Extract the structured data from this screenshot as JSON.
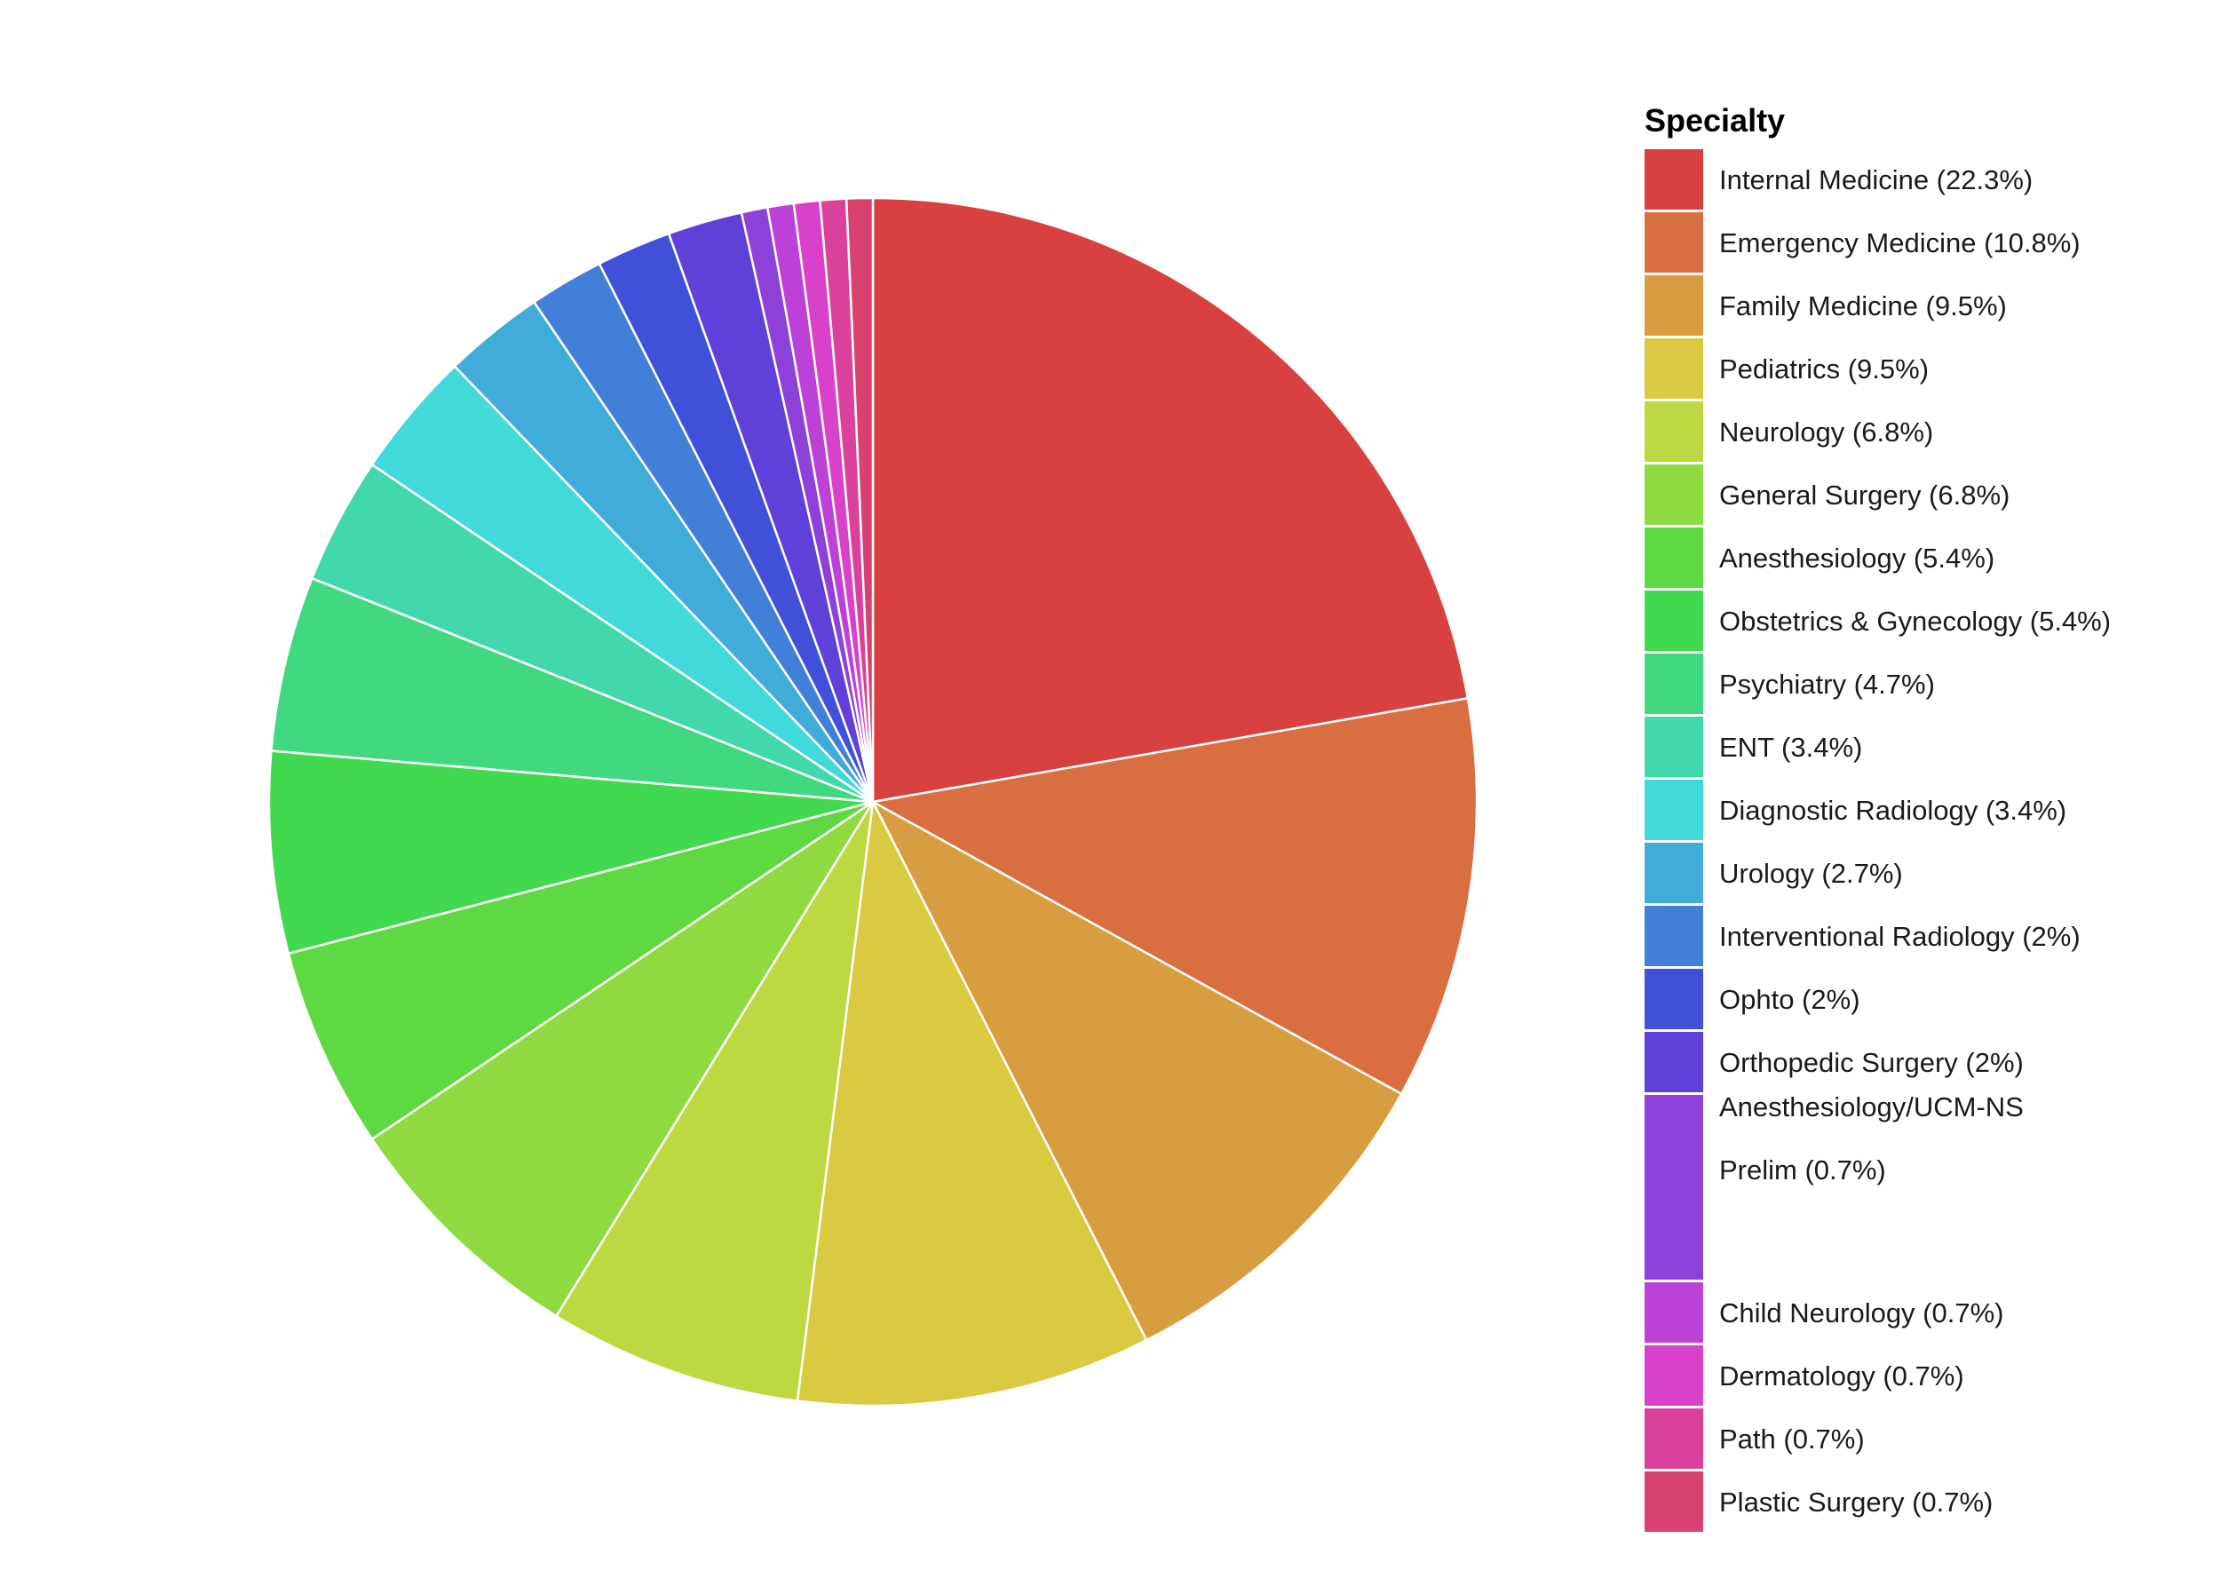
{
  "chart_data": {
    "type": "pie",
    "legend_title": "Specialty",
    "legend_position": "right",
    "start_angle_deg": 0,
    "direction": "clockwise_from_top",
    "slice_border_color": "#ffffff",
    "slices": [
      {
        "label": "Internal Medicine (22.3%)",
        "value": 22.3,
        "color": "#D94141"
      },
      {
        "label": "Emergency Medicine (10.8%)",
        "value": 10.8,
        "color": "#D96E41"
      },
      {
        "label": "Family Medicine (9.5%)",
        "value": 9.5,
        "color": "#D99D41"
      },
      {
        "label": "Pediatrics (9.5%)",
        "value": 9.5,
        "color": "#D9CA41"
      },
      {
        "label": "Neurology (6.8%)",
        "value": 6.8,
        "color": "#BCD941"
      },
      {
        "label": "General Surgery (6.8%)",
        "value": 6.8,
        "color": "#8FD941"
      },
      {
        "label": "Anesthesiology (5.4%)",
        "value": 5.4,
        "color": "#5FD941"
      },
      {
        "label": "Obstetrics & Gynecology (5.4%)",
        "value": 5.4,
        "color": "#41D94F"
      },
      {
        "label": "Psychiatry (4.7%)",
        "value": 4.7,
        "color": "#41D97F"
      },
      {
        "label": "ENT (3.4%)",
        "value": 3.4,
        "color": "#41D9AC"
      },
      {
        "label": "Diagnostic Radiology (3.4%)",
        "value": 3.4,
        "color": "#41D9D9"
      },
      {
        "label": "Urology (2.7%)",
        "value": 2.7,
        "color": "#41ACD9"
      },
      {
        "label": "Interventional Radiology (2%)",
        "value": 2.0,
        "color": "#417FD9"
      },
      {
        "label": "Ophto (2%)",
        "value": 2.0,
        "color": "#4150D9"
      },
      {
        "label": "Orthopedic Surgery (2%)",
        "value": 2.0,
        "color": "#5F41D9"
      },
      {
        "label": "Anesthesiology/UCM-NS\n\nPrelim (0.7%)",
        "value": 0.7,
        "color": "#8C41D9"
      },
      {
        "label": "Child Neurology (0.7%)",
        "value": 0.7,
        "color": "#BC41D9"
      },
      {
        "label": "Dermatology (0.7%)",
        "value": 0.7,
        "color": "#D941CA"
      },
      {
        "label": "Path (0.7%)",
        "value": 0.7,
        "color": "#D9419D"
      },
      {
        "label": "Plastic Surgery (0.7%)",
        "value": 0.7,
        "color": "#D9416E"
      }
    ]
  }
}
